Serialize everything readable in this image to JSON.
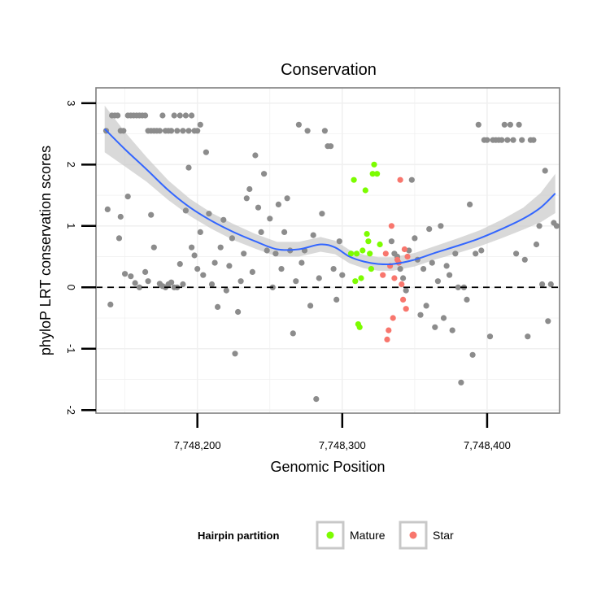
{
  "chart_data": {
    "type": "scatter",
    "title": "Conservation",
    "xlabel": "Genomic Position",
    "ylabel": "phyloP LRT conservation scores",
    "xlim": [
      7748130,
      7748450
    ],
    "ylim": [
      -2.05,
      3.25
    ],
    "x_ticks": [
      7748200,
      7748300,
      7748400
    ],
    "x_tick_labels": [
      "7,748,200",
      "7,748,300",
      "7,748,400"
    ],
    "y_ticks": [
      -2,
      -1,
      0,
      1,
      2,
      3
    ],
    "y_tick_labels": [
      "-2",
      "-1",
      "0",
      "1",
      "2",
      "3"
    ],
    "grid": true,
    "reference_line": {
      "y": 0,
      "style": "dashed"
    },
    "legend": {
      "title": "Hairpin partition",
      "position": "bottom",
      "entries": [
        {
          "label": "Mature",
          "color": "#7cfc00"
        },
        {
          "label": "Star",
          "color": "#f8766d"
        }
      ]
    },
    "colors": {
      "background": "#ffffff",
      "grid": "#f0f0f0",
      "panel_border": "#7f7f7f",
      "gray_points": "#8c8c8c",
      "smooth_line": "#3366ff",
      "ribbon": "#cccccc"
    },
    "series": [
      {
        "group": "background",
        "color": "#8c8c8c",
        "points": [
          [
            7748137,
            2.55
          ],
          [
            7748141,
            2.8
          ],
          [
            7748143,
            2.8
          ],
          [
            7748145,
            2.8
          ],
          [
            7748147,
            2.55
          ],
          [
            7748149,
            2.55
          ],
          [
            7748152,
            2.8
          ],
          [
            7748154,
            2.8
          ],
          [
            7748156,
            2.8
          ],
          [
            7748158,
            2.8
          ],
          [
            7748160,
            2.8
          ],
          [
            7748162,
            2.8
          ],
          [
            7748164,
            2.8
          ],
          [
            7748166,
            2.55
          ],
          [
            7748168,
            2.55
          ],
          [
            7748170,
            2.55
          ],
          [
            7748172,
            2.55
          ],
          [
            7748174,
            2.55
          ],
          [
            7748176,
            2.8
          ],
          [
            7748178,
            2.55
          ],
          [
            7748180,
            2.55
          ],
          [
            7748182,
            2.55
          ],
          [
            7748184,
            2.8
          ],
          [
            7748186,
            2.55
          ],
          [
            7748188,
            2.8
          ],
          [
            7748190,
            2.55
          ],
          [
            7748192,
            2.8
          ],
          [
            7748194,
            2.55
          ],
          [
            7748196,
            2.8
          ],
          [
            7748198,
            2.55
          ],
          [
            7748200,
            2.55
          ],
          [
            7748202,
            2.65
          ],
          [
            7748138,
            1.27
          ],
          [
            7748140,
            -0.28
          ],
          [
            7748146,
            0.8
          ],
          [
            7748147,
            1.15
          ],
          [
            7748150,
            0.22
          ],
          [
            7748152,
            1.48
          ],
          [
            7748154,
            0.18
          ],
          [
            7748157,
            0.07
          ],
          [
            7748160,
            0.0
          ],
          [
            7748164,
            0.25
          ],
          [
            7748166,
            0.1
          ],
          [
            7748168,
            1.18
          ],
          [
            7748170,
            0.65
          ],
          [
            7748174,
            0.06
          ],
          [
            7748176,
            0.02
          ],
          [
            7748178,
            0.0
          ],
          [
            7748180,
            0.05
          ],
          [
            7748182,
            0.08
          ],
          [
            7748184,
            0.0
          ],
          [
            7748186,
            0.0
          ],
          [
            7748188,
            0.38
          ],
          [
            7748190,
            0.05
          ],
          [
            7748192,
            1.25
          ],
          [
            7748194,
            1.95
          ],
          [
            7748196,
            0.65
          ],
          [
            7748198,
            0.52
          ],
          [
            7748200,
            0.3
          ],
          [
            7748202,
            0.9
          ],
          [
            7748204,
            0.2
          ],
          [
            7748206,
            2.2
          ],
          [
            7748208,
            1.2
          ],
          [
            7748210,
            0.05
          ],
          [
            7748212,
            0.4
          ],
          [
            7748214,
            -0.32
          ],
          [
            7748216,
            0.65
          ],
          [
            7748218,
            1.1
          ],
          [
            7748220,
            -0.05
          ],
          [
            7748222,
            0.35
          ],
          [
            7748224,
            0.8
          ],
          [
            7748226,
            -1.08
          ],
          [
            7748228,
            -0.4
          ],
          [
            7748230,
            0.1
          ],
          [
            7748232,
            0.55
          ],
          [
            7748234,
            1.45
          ],
          [
            7748236,
            1.6
          ],
          [
            7748238,
            0.25
          ],
          [
            7748240,
            2.15
          ],
          [
            7748242,
            1.3
          ],
          [
            7748244,
            0.9
          ],
          [
            7748246,
            1.85
          ],
          [
            7748248,
            0.6
          ],
          [
            7748250,
            1.12
          ],
          [
            7748252,
            0.0
          ],
          [
            7748254,
            0.55
          ],
          [
            7748256,
            1.35
          ],
          [
            7748258,
            0.3
          ],
          [
            7748260,
            0.9
          ],
          [
            7748262,
            1.45
          ],
          [
            7748264,
            0.6
          ],
          [
            7748266,
            -0.75
          ],
          [
            7748268,
            0.1
          ],
          [
            7748270,
            2.65
          ],
          [
            7748272,
            0.4
          ],
          [
            7748274,
            0.6
          ],
          [
            7748276,
            2.55
          ],
          [
            7748278,
            -0.3
          ],
          [
            7748280,
            0.85
          ],
          [
            7748282,
            -1.82
          ],
          [
            7748284,
            0.15
          ],
          [
            7748286,
            1.2
          ],
          [
            7748288,
            2.55
          ],
          [
            7748290,
            2.3
          ],
          [
            7748292,
            2.3
          ],
          [
            7748294,
            0.3
          ],
          [
            7748296,
            -0.2
          ],
          [
            7748298,
            0.75
          ],
          [
            7748300,
            0.2
          ],
          [
            7748334,
            0.75
          ],
          [
            7748336,
            0.55
          ],
          [
            7748338,
            0.5
          ],
          [
            7748340,
            0.3
          ],
          [
            7748342,
            0.15
          ],
          [
            7748344,
            -0.05
          ],
          [
            7748346,
            0.6
          ],
          [
            7748348,
            1.75
          ],
          [
            7748350,
            0.8
          ],
          [
            7748352,
            0.45
          ],
          [
            7748354,
            -0.45
          ],
          [
            7748356,
            0.3
          ],
          [
            7748358,
            -0.3
          ],
          [
            7748360,
            0.95
          ],
          [
            7748362,
            0.4
          ],
          [
            7748364,
            -0.65
          ],
          [
            7748366,
            0.1
          ],
          [
            7748368,
            1.0
          ],
          [
            7748370,
            -0.5
          ],
          [
            7748372,
            0.35
          ],
          [
            7748374,
            0.2
          ],
          [
            7748376,
            -0.7
          ],
          [
            7748378,
            0.55
          ],
          [
            7748380,
            0.0
          ],
          [
            7748382,
            -1.55
          ],
          [
            7748384,
            0.0
          ],
          [
            7748386,
            -0.2
          ],
          [
            7748388,
            1.35
          ],
          [
            7748390,
            -1.1
          ],
          [
            7748392,
            0.55
          ],
          [
            7748394,
            2.65
          ],
          [
            7748396,
            0.6
          ],
          [
            7748398,
            2.4
          ],
          [
            7748400,
            2.4
          ],
          [
            7748402,
            -0.8
          ],
          [
            7748404,
            2.4
          ],
          [
            7748406,
            2.4
          ],
          [
            7748408,
            2.4
          ],
          [
            7748410,
            2.4
          ],
          [
            7748412,
            2.65
          ],
          [
            7748414,
            2.4
          ],
          [
            7748416,
            2.65
          ],
          [
            7748418,
            2.4
          ],
          [
            7748420,
            0.55
          ],
          [
            7748422,
            2.65
          ],
          [
            7748424,
            2.4
          ],
          [
            7748426,
            0.45
          ],
          [
            7748428,
            -0.8
          ],
          [
            7748430,
            2.4
          ],
          [
            7748432,
            2.4
          ],
          [
            7748434,
            0.7
          ],
          [
            7748436,
            1.0
          ],
          [
            7748438,
            0.05
          ],
          [
            7748440,
            1.9
          ],
          [
            7748442,
            -0.55
          ],
          [
            7748444,
            0.05
          ],
          [
            7748446,
            1.05
          ],
          [
            7748448,
            1.0
          ]
        ]
      },
      {
        "group": "Mature",
        "color": "#7cfc00",
        "points": [
          [
            7748306,
            0.55
          ],
          [
            7748308,
            1.75
          ],
          [
            7748309,
            0.1
          ],
          [
            7748310,
            0.55
          ],
          [
            7748311,
            -0.6
          ],
          [
            7748312,
            -0.65
          ],
          [
            7748313,
            0.15
          ],
          [
            7748314,
            0.6
          ],
          [
            7748316,
            1.58
          ],
          [
            7748317,
            0.87
          ],
          [
            7748318,
            0.75
          ],
          [
            7748319,
            0.55
          ],
          [
            7748320,
            0.3
          ],
          [
            7748321,
            1.85
          ],
          [
            7748322,
            2.0
          ],
          [
            7748324,
            1.85
          ],
          [
            7748326,
            0.7
          ]
        ]
      },
      {
        "group": "Star",
        "color": "#f8766d",
        "points": [
          [
            7748328,
            0.2
          ],
          [
            7748330,
            0.55
          ],
          [
            7748331,
            -0.85
          ],
          [
            7748332,
            -0.7
          ],
          [
            7748333,
            0.35
          ],
          [
            7748334,
            1.0
          ],
          [
            7748335,
            -0.5
          ],
          [
            7748336,
            0.15
          ],
          [
            7748338,
            0.45
          ],
          [
            7748339,
            0.4
          ],
          [
            7748340,
            1.75
          ],
          [
            7748341,
            0.05
          ],
          [
            7748342,
            -0.2
          ],
          [
            7748343,
            0.62
          ],
          [
            7748344,
            -0.35
          ],
          [
            7748345,
            0.5
          ]
        ]
      }
    ],
    "smooth": {
      "color": "#3366ff",
      "points": [
        [
          7748136,
          2.58
        ],
        [
          7748150,
          2.25
        ],
        [
          7748165,
          1.92
        ],
        [
          7748180,
          1.58
        ],
        [
          7748195,
          1.3
        ],
        [
          7748210,
          1.08
        ],
        [
          7748225,
          0.9
        ],
        [
          7748240,
          0.75
        ],
        [
          7748255,
          0.62
        ],
        [
          7748270,
          0.62
        ],
        [
          7748285,
          0.7
        ],
        [
          7748295,
          0.65
        ],
        [
          7748305,
          0.5
        ],
        [
          7748315,
          0.42
        ],
        [
          7748325,
          0.38
        ],
        [
          7748335,
          0.38
        ],
        [
          7748350,
          0.45
        ],
        [
          7748365,
          0.57
        ],
        [
          7748380,
          0.68
        ],
        [
          7748395,
          0.8
        ],
        [
          7748410,
          0.95
        ],
        [
          7748425,
          1.12
        ],
        [
          7748437,
          1.3
        ],
        [
          7748447,
          1.53
        ]
      ],
      "ribbon_halfwidth": [
        0.38,
        0.28,
        0.2,
        0.16,
        0.14,
        0.13,
        0.13,
        0.12,
        0.12,
        0.12,
        0.12,
        0.11,
        0.11,
        0.11,
        0.11,
        0.11,
        0.11,
        0.11,
        0.12,
        0.13,
        0.15,
        0.18,
        0.24,
        0.32
      ]
    }
  }
}
